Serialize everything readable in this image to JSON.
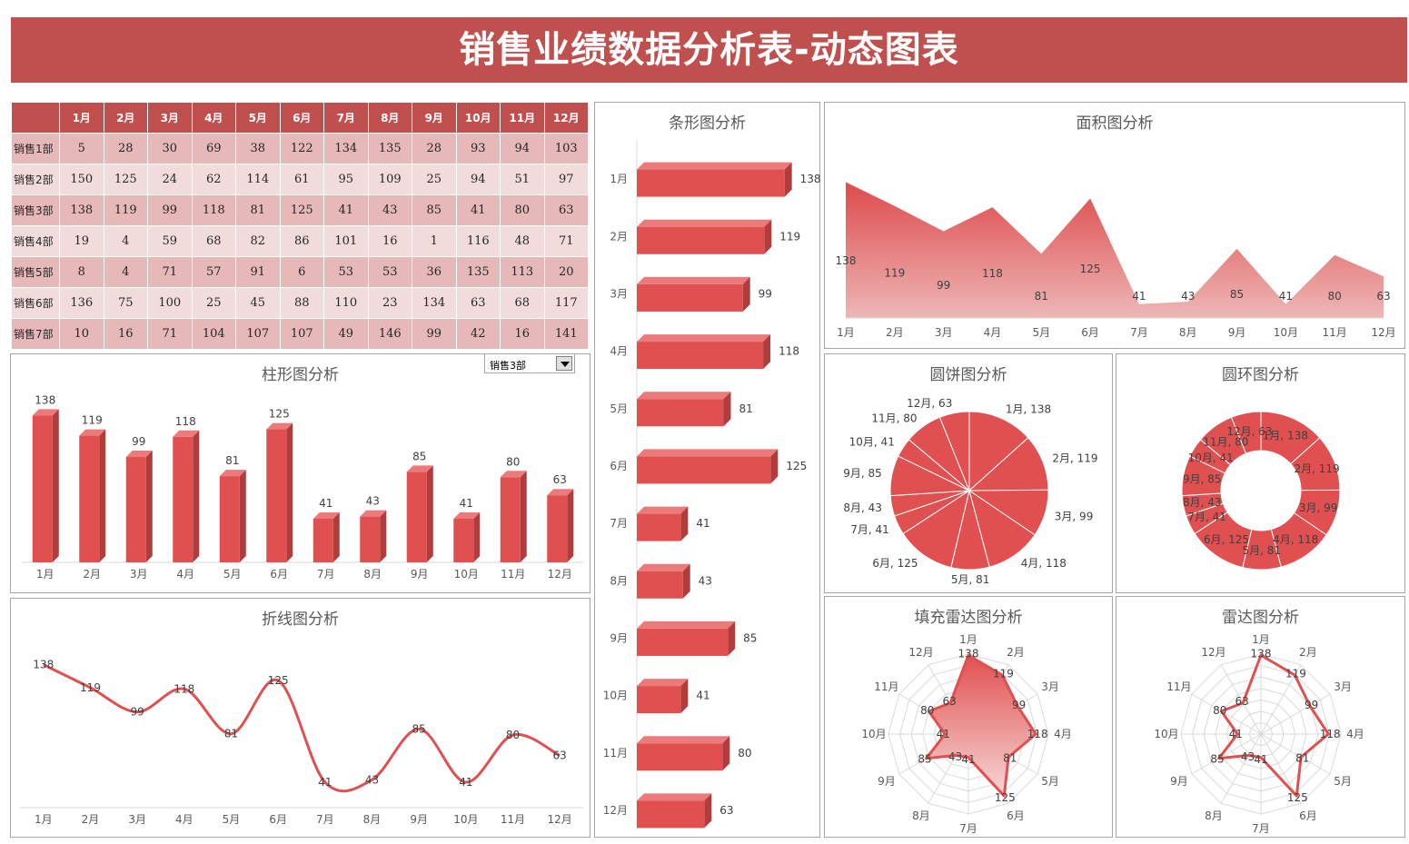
{
  "header": {
    "title": "销售业绩数据分析表-动态图表"
  },
  "table": {
    "months": [
      "1月",
      "2月",
      "3月",
      "4月",
      "5月",
      "6月",
      "7月",
      "8月",
      "9月",
      "10月",
      "11月",
      "12月"
    ],
    "rows": [
      {
        "name": "销售1部",
        "values": [
          5,
          28,
          30,
          69,
          38,
          122,
          134,
          135,
          28,
          93,
          94,
          103
        ]
      },
      {
        "name": "销售2部",
        "values": [
          150,
          125,
          24,
          62,
          114,
          61,
          95,
          109,
          25,
          94,
          51,
          97
        ]
      },
      {
        "name": "销售3部",
        "values": [
          138,
          119,
          99,
          118,
          81,
          125,
          41,
          43,
          85,
          41,
          80,
          63
        ]
      },
      {
        "name": "销售4部",
        "values": [
          19,
          4,
          59,
          68,
          82,
          86,
          101,
          16,
          1,
          116,
          48,
          71
        ]
      },
      {
        "name": "销售5部",
        "values": [
          8,
          4,
          71,
          57,
          91,
          6,
          53,
          53,
          36,
          135,
          113,
          20
        ]
      },
      {
        "name": "销售6部",
        "values": [
          136,
          75,
          100,
          25,
          45,
          88,
          110,
          23,
          134,
          63,
          68,
          117
        ]
      },
      {
        "name": "销售7部",
        "values": [
          10,
          16,
          71,
          104,
          107,
          107,
          49,
          146,
          99,
          42,
          16,
          141
        ]
      }
    ]
  },
  "selector": {
    "selected": "销售3部"
  },
  "colors": {
    "accent": "#c0504d",
    "bar": "#e15050",
    "row_dark": "#e6b8b7",
    "row_light": "#f2dcdb"
  },
  "chart_data": [
    {
      "type": "bar",
      "title": "柱形图分析",
      "categories": [
        "1月",
        "2月",
        "3月",
        "4月",
        "5月",
        "6月",
        "7月",
        "8月",
        "9月",
        "10月",
        "11月",
        "12月"
      ],
      "values": [
        138,
        119,
        99,
        118,
        81,
        125,
        41,
        43,
        85,
        41,
        80,
        63
      ]
    },
    {
      "type": "line",
      "title": "折线图分析",
      "categories": [
        "1月",
        "2月",
        "3月",
        "4月",
        "5月",
        "6月",
        "7月",
        "8月",
        "9月",
        "10月",
        "11月",
        "12月"
      ],
      "values": [
        138,
        119,
        99,
        118,
        81,
        125,
        41,
        43,
        85,
        41,
        80,
        63
      ]
    },
    {
      "type": "bar",
      "orientation": "horizontal",
      "title": "条形图分析",
      "categories": [
        "1月",
        "2月",
        "3月",
        "4月",
        "5月",
        "6月",
        "7月",
        "8月",
        "9月",
        "10月",
        "11月",
        "12月"
      ],
      "values": [
        138,
        119,
        99,
        118,
        81,
        125,
        41,
        43,
        85,
        41,
        80,
        63
      ]
    },
    {
      "type": "area",
      "title": "面积图分析",
      "categories": [
        "1月",
        "2月",
        "3月",
        "4月",
        "5月",
        "6月",
        "7月",
        "8月",
        "9月",
        "10月",
        "11月",
        "12月"
      ],
      "values": [
        138,
        119,
        99,
        118,
        81,
        125,
        41,
        43,
        85,
        41,
        80,
        63
      ]
    },
    {
      "type": "pie",
      "title": "圆饼图分析",
      "categories": [
        "1月",
        "2月",
        "3月",
        "4月",
        "5月",
        "6月",
        "7月",
        "8月",
        "9月",
        "10月",
        "11月",
        "12月"
      ],
      "values": [
        138,
        119,
        99,
        118,
        81,
        125,
        41,
        43,
        85,
        41,
        80,
        63
      ]
    },
    {
      "type": "pie",
      "variant": "doughnut",
      "title": "圆环图分析",
      "categories": [
        "1月",
        "2月",
        "3月",
        "4月",
        "5月",
        "6月",
        "7月",
        "8月",
        "9月",
        "10月",
        "11月",
        "12月"
      ],
      "values": [
        138,
        119,
        99,
        118,
        81,
        125,
        41,
        43,
        85,
        41,
        80,
        63
      ]
    },
    {
      "type": "radar",
      "variant": "filled",
      "title": "填充雷达图分析",
      "categories": [
        "1月",
        "2月",
        "3月",
        "4月",
        "5月",
        "6月",
        "7月",
        "8月",
        "9月",
        "10月",
        "11月",
        "12月"
      ],
      "values": [
        138,
        119,
        99,
        118,
        81,
        125,
        41,
        43,
        85,
        41,
        80,
        63
      ],
      "rmax": 140
    },
    {
      "type": "radar",
      "title": "雷达图分析",
      "categories": [
        "1月",
        "2月",
        "3月",
        "4月",
        "5月",
        "6月",
        "7月",
        "8月",
        "9月",
        "10月",
        "11月",
        "12月"
      ],
      "values": [
        138,
        119,
        99,
        118,
        81,
        125,
        41,
        43,
        85,
        41,
        80,
        63
      ],
      "rmax": 140
    }
  ]
}
